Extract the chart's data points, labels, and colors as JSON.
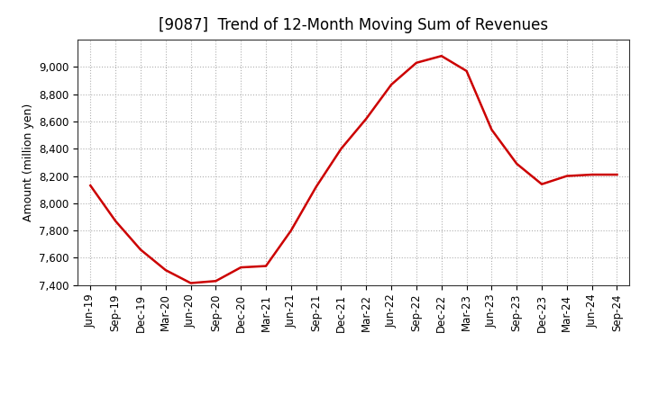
{
  "title": "[9087]  Trend of 12-Month Moving Sum of Revenues",
  "ylabel": "Amount (million yen)",
  "background_color": "#ffffff",
  "line_color": "#cc0000",
  "grid_color": "#b0b0b0",
  "labels": [
    "Jun-19",
    "Sep-19",
    "Dec-19",
    "Mar-20",
    "Jun-20",
    "Sep-20",
    "Dec-20",
    "Mar-21",
    "Jun-21",
    "Sep-21",
    "Dec-21",
    "Mar-22",
    "Jun-22",
    "Sep-22",
    "Dec-22",
    "Mar-23",
    "Jun-23",
    "Sep-23",
    "Dec-23",
    "Mar-24",
    "Jun-24",
    "Sep-24"
  ],
  "values": [
    8130,
    7870,
    7660,
    7510,
    7415,
    7430,
    7530,
    7540,
    7800,
    8120,
    8400,
    8620,
    8870,
    9030,
    9080,
    8970,
    8540,
    8290,
    8140,
    8200,
    8210,
    8210
  ],
  "ylim_min": 7400,
  "ylim_max": 9200,
  "yticks": [
    7400,
    7600,
    7800,
    8000,
    8200,
    8400,
    8600,
    8800,
    9000
  ],
  "title_fontsize": 12,
  "axis_fontsize": 9,
  "tick_fontsize": 8.5
}
